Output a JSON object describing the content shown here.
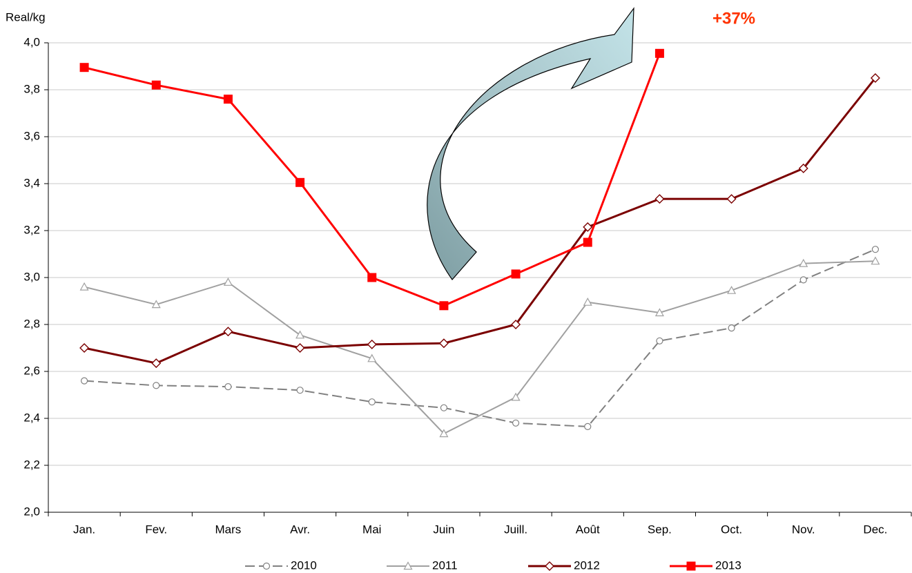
{
  "chart_data": {
    "type": "line",
    "y_label": "Real/kg",
    "annotation": "+37%",
    "categories": [
      "Jan.",
      "Fev.",
      "Mars",
      "Avr.",
      "Mai",
      "Juin",
      "Juill.",
      "Août",
      "Sep.",
      "Oct.",
      "Nov.",
      "Dec."
    ],
    "series": [
      {
        "name": "2010",
        "color": "#808080",
        "marker": "circle",
        "dashed": true,
        "values": [
          2.56,
          2.54,
          2.535,
          2.52,
          2.47,
          2.445,
          2.38,
          2.365,
          2.73,
          2.785,
          2.99,
          3.12
        ]
      },
      {
        "name": "2011",
        "color": "#a0a0a0",
        "marker": "triangle",
        "dashed": false,
        "values": [
          2.96,
          2.885,
          2.98,
          2.755,
          2.655,
          2.335,
          2.49,
          2.895,
          2.85,
          2.945,
          3.06,
          3.07
        ]
      },
      {
        "name": "2012",
        "color": "#7b0000",
        "marker": "diamond",
        "dashed": false,
        "values": [
          2.7,
          2.635,
          2.77,
          2.7,
          2.715,
          2.72,
          2.8,
          3.215,
          3.335,
          3.335,
          3.465,
          3.85
        ]
      },
      {
        "name": "2013",
        "color": "#ff0000",
        "marker": "square",
        "dashed": false,
        "values": [
          3.895,
          3.82,
          3.76,
          3.405,
          3.0,
          2.88,
          3.015,
          3.15,
          3.955,
          null,
          null,
          null
        ]
      }
    ],
    "ylim": [
      2.0,
      4.0
    ],
    "yticks": [
      {
        "value": 2.0,
        "label": "2,0"
      },
      {
        "value": 2.2,
        "label": "2,2"
      },
      {
        "value": 2.4,
        "label": "2,4"
      },
      {
        "value": 2.6,
        "label": "2,6"
      },
      {
        "value": 2.8,
        "label": "2,8"
      },
      {
        "value": 3.0,
        "label": "3,0"
      },
      {
        "value": 3.2,
        "label": "3,2"
      },
      {
        "value": 3.4,
        "label": "3,4"
      },
      {
        "value": 3.6,
        "label": "3,6"
      },
      {
        "value": 3.8,
        "label": "3,8"
      },
      {
        "value": 4.0,
        "label": "4,0"
      }
    ],
    "grid": true,
    "legend": "bottom"
  }
}
